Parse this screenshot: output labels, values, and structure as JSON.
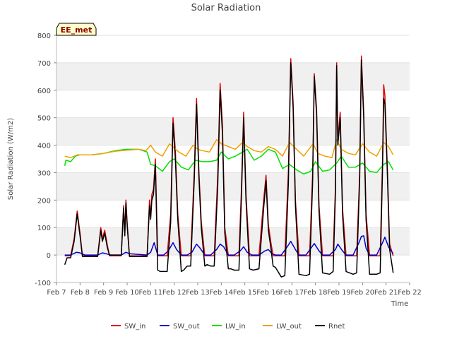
{
  "chart_data": {
    "type": "line",
    "title": "Solar Radiation",
    "xlabel": "Time",
    "ylabel": "Solar Radiation (W/m2)",
    "station_label": "EE_met",
    "xlim": [
      7,
      22
    ],
    "ylim": [
      -100,
      800
    ],
    "x_ticks": [
      {
        "value": 7,
        "label": "Feb 7"
      },
      {
        "value": 8,
        "label": "Feb 8"
      },
      {
        "value": 9,
        "label": "Feb 9"
      },
      {
        "value": 10,
        "label": "Feb 10"
      },
      {
        "value": 11,
        "label": "Feb 11"
      },
      {
        "value": 12,
        "label": "Feb 12"
      },
      {
        "value": 13,
        "label": "Feb 13"
      },
      {
        "value": 14,
        "label": "Feb 14"
      },
      {
        "value": 15,
        "label": "Feb 15"
      },
      {
        "value": 16,
        "label": "Feb 16"
      },
      {
        "value": 17,
        "label": "Feb 17"
      },
      {
        "value": 18,
        "label": "Feb 18"
      },
      {
        "value": 19,
        "label": "Feb 19"
      },
      {
        "value": 20,
        "label": "Feb 20"
      },
      {
        "value": 21,
        "label": "Feb 21"
      },
      {
        "value": 22,
        "label": "Feb 22"
      }
    ],
    "y_ticks": [
      {
        "value": -100,
        "label": "-100"
      },
      {
        "value": 0,
        "label": "0"
      },
      {
        "value": 100,
        "label": "100"
      },
      {
        "value": 200,
        "label": "200"
      },
      {
        "value": 300,
        "label": "300"
      },
      {
        "value": 400,
        "label": "400"
      },
      {
        "value": 500,
        "label": "500"
      },
      {
        "value": 600,
        "label": "600"
      },
      {
        "value": 700,
        "label": "700"
      },
      {
        "value": 800,
        "label": "800"
      }
    ],
    "legend_position": "bottom",
    "background_bands": true,
    "series": [
      {
        "name": "SW_in",
        "color": "#dd0000",
        "x": [
          7.35,
          7.6,
          7.75,
          7.88,
          8.0,
          8.1,
          8.75,
          8.88,
          8.95,
          9.05,
          9.15,
          9.25,
          9.75,
          9.85,
          9.9,
          9.95,
          10.0,
          10.1,
          10.85,
          10.95,
          11.0,
          11.05,
          11.12,
          11.2,
          11.3,
          11.4,
          11.55,
          11.7,
          11.85,
          11.95,
          12.05,
          12.15,
          12.3,
          12.4,
          12.55,
          12.7,
          12.85,
          12.95,
          13.05,
          13.15,
          13.3,
          13.4,
          13.55,
          13.7,
          13.85,
          13.95,
          14.05,
          14.15,
          14.3,
          14.4,
          14.55,
          14.75,
          14.85,
          14.95,
          15.05,
          15.2,
          15.35,
          15.6,
          15.8,
          15.9,
          16.0,
          16.1,
          16.2,
          16.3,
          16.55,
          16.7,
          16.85,
          16.95,
          17.05,
          17.15,
          17.3,
          17.6,
          17.75,
          17.88,
          17.95,
          18.05,
          18.15,
          18.3,
          18.6,
          18.75,
          18.85,
          18.9,
          18.95,
          19.05,
          19.15,
          19.3,
          19.6,
          19.75,
          19.88,
          19.95,
          20.05,
          20.15,
          20.3,
          20.6,
          20.75,
          20.85,
          20.9,
          20.95,
          21.05,
          21.15,
          21.3
        ],
        "y": [
          -3,
          -3,
          60,
          160,
          80,
          -3,
          -3,
          100,
          60,
          90,
          40,
          -3,
          -3,
          180,
          80,
          200,
          120,
          -3,
          -3,
          200,
          140,
          220,
          240,
          350,
          -3,
          -3,
          -3,
          -3,
          150,
          500,
          380,
          150,
          -3,
          -3,
          -3,
          -3,
          300,
          570,
          300,
          120,
          -3,
          -3,
          -3,
          -3,
          290,
          625,
          470,
          100,
          -3,
          -3,
          -3,
          -3,
          230,
          520,
          220,
          -3,
          -3,
          -3,
          200,
          290,
          110,
          50,
          -3,
          -3,
          -3,
          -3,
          300,
          715,
          560,
          200,
          -3,
          -3,
          -3,
          300,
          660,
          530,
          180,
          -3,
          -3,
          -3,
          250,
          700,
          420,
          520,
          170,
          -3,
          -3,
          -3,
          300,
          725,
          520,
          150,
          -3,
          -3,
          -3,
          350,
          620,
          580,
          330,
          40,
          -3
        ]
      },
      {
        "name": "SW_out",
        "color": "#0000cc",
        "x": [
          7.35,
          7.6,
          7.85,
          8.0,
          8.2,
          8.75,
          8.95,
          9.1,
          9.3,
          9.75,
          9.95,
          10.1,
          10.85,
          11.0,
          11.15,
          11.3,
          11.55,
          11.75,
          11.95,
          12.1,
          12.3,
          12.55,
          12.75,
          12.95,
          13.1,
          13.3,
          13.55,
          13.8,
          13.95,
          14.1,
          14.3,
          14.55,
          14.8,
          14.95,
          15.1,
          15.3,
          15.6,
          15.85,
          16.0,
          16.15,
          16.3,
          16.55,
          16.8,
          16.95,
          17.15,
          17.3,
          17.6,
          17.85,
          17.95,
          18.15,
          18.3,
          18.6,
          18.85,
          18.95,
          19.15,
          19.3,
          19.6,
          19.85,
          19.95,
          20.05,
          20.15,
          20.3,
          20.6,
          20.85,
          20.95,
          21.1,
          21.3
        ],
        "y": [
          0,
          0,
          10,
          8,
          0,
          0,
          8,
          5,
          0,
          0,
          10,
          5,
          0,
          10,
          45,
          0,
          0,
          15,
          45,
          20,
          0,
          0,
          10,
          40,
          25,
          0,
          0,
          20,
          40,
          30,
          0,
          0,
          15,
          30,
          10,
          0,
          0,
          15,
          20,
          5,
          0,
          0,
          30,
          50,
          20,
          0,
          0,
          30,
          42,
          15,
          0,
          0,
          20,
          40,
          15,
          0,
          0,
          45,
          68,
          70,
          25,
          0,
          0,
          45,
          65,
          30,
          5
        ]
      },
      {
        "name": "LW_in",
        "color": "#00e000",
        "x": [
          7.35,
          7.4,
          7.6,
          7.8,
          8.0,
          8.5,
          9.0,
          9.5,
          10.0,
          10.5,
          10.85,
          11.0,
          11.2,
          11.5,
          11.8,
          12.0,
          12.3,
          12.6,
          12.9,
          13.2,
          13.5,
          13.8,
          14.0,
          14.3,
          14.6,
          14.9,
          15.1,
          15.4,
          15.7,
          16.0,
          16.3,
          16.6,
          16.9,
          17.2,
          17.5,
          17.8,
          18.0,
          18.3,
          18.6,
          18.9,
          19.1,
          19.4,
          19.7,
          20.0,
          20.3,
          20.6,
          20.9,
          21.1,
          21.3
        ],
        "y": [
          325,
          345,
          340,
          360,
          365,
          365,
          370,
          380,
          385,
          385,
          375,
          330,
          325,
          305,
          340,
          350,
          320,
          310,
          345,
          340,
          340,
          345,
          375,
          350,
          360,
          375,
          385,
          345,
          360,
          385,
          375,
          315,
          330,
          310,
          295,
          305,
          340,
          305,
          310,
          335,
          360,
          320,
          320,
          335,
          305,
          300,
          330,
          340,
          310
        ]
      },
      {
        "name": "LW_out",
        "color": "#f0a000",
        "x": [
          7.35,
          7.6,
          7.9,
          8.5,
          9.0,
          9.5,
          10.0,
          10.5,
          10.8,
          11.0,
          11.2,
          11.5,
          11.8,
          12.0,
          12.2,
          12.5,
          12.8,
          13.0,
          13.2,
          13.5,
          13.8,
          14.0,
          14.3,
          14.6,
          14.9,
          15.1,
          15.4,
          15.7,
          16.0,
          16.3,
          16.6,
          16.9,
          17.2,
          17.5,
          17.9,
          18.1,
          18.4,
          18.7,
          18.9,
          19.1,
          19.4,
          19.7,
          20.0,
          20.3,
          20.6,
          20.9,
          21.1,
          21.3
        ],
        "y": [
          360,
          355,
          365,
          365,
          370,
          378,
          382,
          385,
          380,
          400,
          375,
          360,
          405,
          390,
          375,
          360,
          400,
          385,
          380,
          375,
          420,
          405,
          395,
          385,
          410,
          395,
          380,
          375,
          395,
          385,
          360,
          410,
          385,
          360,
          405,
          370,
          360,
          355,
          420,
          385,
          370,
          365,
          405,
          375,
          360,
          410,
          395,
          365
        ]
      },
      {
        "name": "Rnet",
        "color": "#000000",
        "x": [
          7.35,
          7.45,
          7.6,
          7.75,
          7.88,
          8.0,
          8.1,
          8.75,
          8.88,
          8.95,
          9.05,
          9.15,
          9.25,
          9.75,
          9.85,
          9.9,
          9.95,
          10.0,
          10.1,
          10.85,
          10.95,
          11.0,
          11.05,
          11.12,
          11.2,
          11.3,
          11.4,
          11.55,
          11.7,
          11.85,
          11.95,
          12.05,
          12.15,
          12.3,
          12.4,
          12.55,
          12.7,
          12.85,
          12.95,
          13.05,
          13.15,
          13.3,
          13.4,
          13.55,
          13.7,
          13.85,
          13.95,
          14.05,
          14.15,
          14.3,
          14.4,
          14.55,
          14.75,
          14.85,
          14.95,
          15.05,
          15.2,
          15.35,
          15.6,
          15.8,
          15.9,
          16.0,
          16.1,
          16.2,
          16.3,
          16.55,
          16.7,
          16.85,
          16.95,
          17.05,
          17.15,
          17.3,
          17.6,
          17.75,
          17.88,
          17.95,
          18.05,
          18.15,
          18.3,
          18.6,
          18.75,
          18.85,
          18.9,
          18.95,
          19.05,
          19.15,
          19.3,
          19.6,
          19.75,
          19.88,
          19.95,
          20.05,
          20.15,
          20.3,
          20.6,
          20.75,
          20.85,
          20.9,
          20.95,
          21.05,
          21.15,
          21.3
        ],
        "y": [
          -35,
          -10,
          -10,
          50,
          150,
          70,
          -5,
          -5,
          90,
          50,
          80,
          30,
          0,
          0,
          170,
          70,
          190,
          110,
          -5,
          -5,
          180,
          130,
          200,
          220,
          330,
          -55,
          -60,
          -60,
          -60,
          120,
          480,
          350,
          130,
          -60,
          -55,
          -40,
          -40,
          270,
          550,
          280,
          100,
          -40,
          -35,
          -40,
          -40,
          250,
          600,
          440,
          80,
          -50,
          -50,
          -55,
          -55,
          200,
          500,
          200,
          -50,
          -55,
          -50,
          170,
          270,
          90,
          30,
          -40,
          -45,
          -80,
          -75,
          260,
          700,
          540,
          180,
          -70,
          -75,
          -70,
          270,
          650,
          510,
          160,
          -65,
          -70,
          -60,
          230,
          690,
          400,
          500,
          150,
          -60,
          -70,
          -65,
          280,
          710,
          500,
          130,
          -70,
          -70,
          -65,
          320,
          570,
          550,
          310,
          20,
          -65
        ]
      }
    ]
  }
}
